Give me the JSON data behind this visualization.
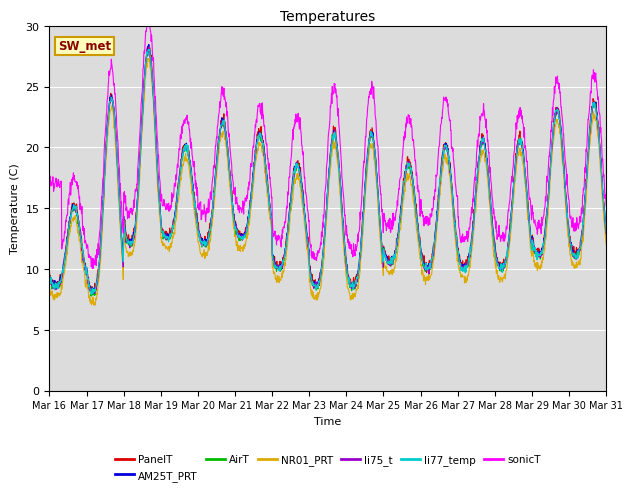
{
  "title": "Temperatures",
  "xlabel": "Time",
  "ylabel": "Temperature (C)",
  "ylim": [
    0,
    30
  ],
  "annotation": "SW_met",
  "series_colors": {
    "PanelT": "#dd0000",
    "AM25T_PRT": "#0000dd",
    "AirT": "#00bb00",
    "NR01_PRT": "#ddaa00",
    "li75_t": "#9900cc",
    "li77_temp": "#00cccc",
    "sonicT": "#ff00ff"
  },
  "legend_order": [
    "PanelT",
    "AM25T_PRT",
    "AirT",
    "NR01_PRT",
    "li75_t",
    "li77_temp",
    "sonicT"
  ],
  "bg_color": "#dcdcdc",
  "fig_bg_color": "#ffffff",
  "grid_color": "#ffffff",
  "tick_labels": [
    "Mar 16",
    "Mar 17",
    "Mar 18",
    "Mar 19",
    "Mar 20",
    "Mar 21",
    "Mar 22",
    "Mar 23",
    "Mar 24",
    "Mar 25",
    "Mar 26",
    "Mar 27",
    "Mar 28",
    "Mar 29",
    "Mar 30",
    "Mar 31"
  ]
}
